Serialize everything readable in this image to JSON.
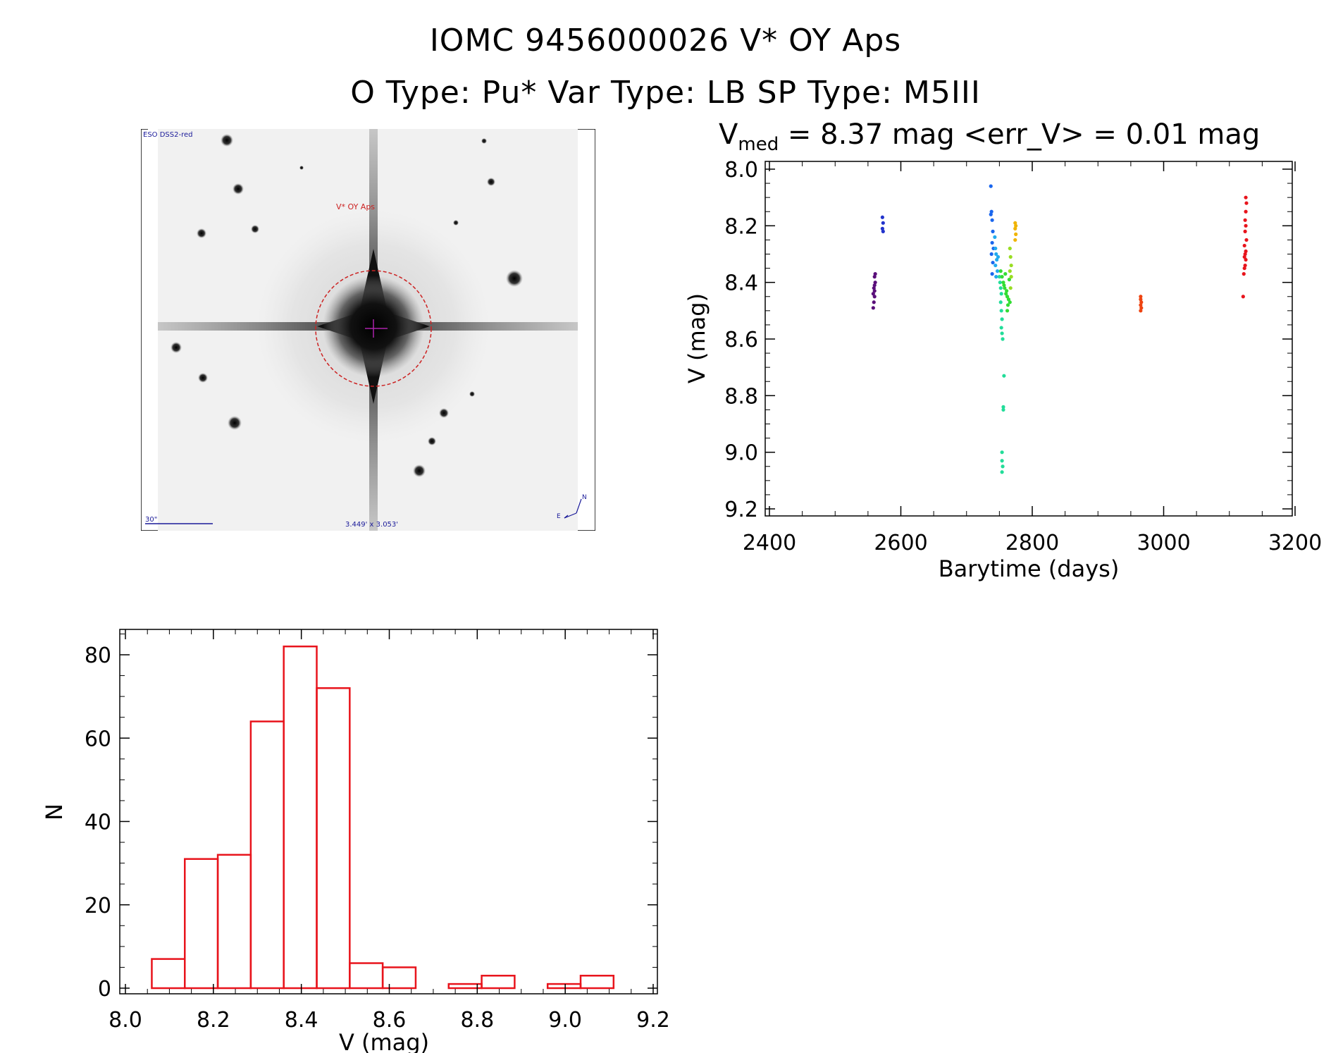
{
  "header": {
    "title_line1": "IOMC 9456000026    V* OY Aps",
    "title_line2": "O Type: Pu*  Var Type: LB  SP Type: M5III"
  },
  "sky_image": {
    "survey_label": "ESO DSS2-red",
    "target_label": "V* OY Aps",
    "scale_label": "30\"",
    "fov_label": "3.449' x 3.053'",
    "east_label": "E",
    "north_label": "N"
  },
  "colors": {
    "hist_bar": "#e8141c",
    "axis": "#000000",
    "circle": "#cc2222",
    "overlay_text": "#1a1a99"
  },
  "chart_data": [
    {
      "type": "scatter",
      "title": "V_med = 8.37 mag <err_V> = 0.01 mag",
      "title_parts": {
        "prefix": "V",
        "sub": "med",
        "rest": " = 8.37 mag <err_V> = 0.01 mag"
      },
      "xlabel": "Barytime (days)",
      "ylabel": "V (mag)",
      "xlim": [
        2400,
        3200
      ],
      "ylim": [
        8.0,
        9.2
      ],
      "y_inverted": true,
      "xticks": [
        2400,
        2600,
        2800,
        3000,
        3200
      ],
      "xtick_labels": [
        "2400",
        "2600",
        "2800",
        "3000",
        "3200"
      ],
      "yticks": [
        8.0,
        8.2,
        8.4,
        8.6,
        8.8,
        9.0,
        9.2
      ],
      "ytick_labels": [
        "8.0",
        "8.2",
        "8.4",
        "8.6",
        "8.8",
        "9.0",
        "9.2"
      ],
      "series": [
        {
          "color": "#5a0f7a",
          "points": [
            [
              2560,
              8.38
            ],
            [
              2561,
              8.4
            ],
            [
              2559,
              8.42
            ],
            [
              2560,
              8.43
            ],
            [
              2558,
              8.44
            ],
            [
              2560,
              8.45
            ],
            [
              2559,
              8.47
            ],
            [
              2558,
              8.49
            ],
            [
              2561,
              8.37
            ],
            [
              2560,
              8.41
            ]
          ]
        },
        {
          "color": "#2233cc",
          "points": [
            [
              2572,
              8.17
            ],
            [
              2573,
              8.19
            ],
            [
              2572,
              8.21
            ],
            [
              2573,
              8.22
            ]
          ]
        },
        {
          "color": "#1a66ee",
          "points": [
            [
              2737,
              8.06
            ],
            [
              2738,
              8.15
            ],
            [
              2737,
              8.16
            ],
            [
              2739,
              8.18
            ],
            [
              2740,
              8.22
            ],
            [
              2739,
              8.26
            ],
            [
              2741,
              8.28
            ],
            [
              2738,
              8.3
            ],
            [
              2740,
              8.33
            ],
            [
              2739,
              8.37
            ]
          ]
        },
        {
          "color": "#22aaee",
          "points": [
            [
              2743,
              8.24
            ],
            [
              2744,
              8.28
            ],
            [
              2745,
              8.3
            ],
            [
              2746,
              8.32
            ],
            [
              2744,
              8.34
            ],
            [
              2747,
              8.36
            ],
            [
              2745,
              8.38
            ],
            [
              2748,
              8.31
            ]
          ]
        },
        {
          "color": "#22dd99",
          "points": [
            [
              2750,
              8.38
            ],
            [
              2751,
              8.4
            ],
            [
              2752,
              8.42
            ],
            [
              2753,
              8.44
            ],
            [
              2752,
              8.47
            ],
            [
              2753,
              8.5
            ],
            [
              2754,
              8.53
            ],
            [
              2753,
              8.56
            ],
            [
              2754,
              8.58
            ],
            [
              2755,
              8.6
            ],
            [
              2757,
              8.73
            ],
            [
              2756,
              8.84
            ],
            [
              2756,
              8.85
            ],
            [
              2754,
              9.0
            ],
            [
              2754,
              9.03
            ],
            [
              2755,
              9.05
            ],
            [
              2754,
              9.07
            ]
          ]
        },
        {
          "color": "#33dd33",
          "points": [
            [
              2752,
              8.36
            ],
            [
              2754,
              8.38
            ],
            [
              2756,
              8.4
            ],
            [
              2758,
              8.42
            ],
            [
              2760,
              8.44
            ],
            [
              2762,
              8.45
            ],
            [
              2764,
              8.46
            ],
            [
              2766,
              8.47
            ],
            [
              2759,
              8.37
            ],
            [
              2761,
              8.43
            ],
            [
              2763,
              8.48
            ],
            [
              2757,
              8.41
            ],
            [
              2765,
              8.39
            ],
            [
              2762,
              8.5
            ]
          ]
        },
        {
          "color": "#99dd22",
          "points": [
            [
              2766,
              8.28
            ],
            [
              2767,
              8.31
            ],
            [
              2768,
              8.34
            ],
            [
              2766,
              8.36
            ],
            [
              2768,
              8.38
            ],
            [
              2767,
              8.42
            ]
          ]
        },
        {
          "color": "#f0b400",
          "points": [
            [
              2774,
              8.19
            ],
            [
              2774,
              8.21
            ],
            [
              2775,
              8.23
            ],
            [
              2774,
              8.25
            ],
            [
              2775,
              8.2
            ]
          ]
        },
        {
          "color": "#ee4411",
          "points": [
            [
              2965,
              8.45
            ],
            [
              2965,
              8.46
            ],
            [
              2966,
              8.47
            ],
            [
              2965,
              8.48
            ],
            [
              2966,
              8.49
            ],
            [
              2965,
              8.5
            ]
          ]
        },
        {
          "color": "#e8141c",
          "points": [
            [
              3125,
              8.1
            ],
            [
              3126,
              8.12
            ],
            [
              3125,
              8.15
            ],
            [
              3124,
              8.18
            ],
            [
              3125,
              8.2
            ],
            [
              3124,
              8.22
            ],
            [
              3126,
              8.25
            ],
            [
              3123,
              8.27
            ],
            [
              3125,
              8.29
            ],
            [
              3124,
              8.3
            ],
            [
              3123,
              8.31
            ],
            [
              3125,
              8.32
            ],
            [
              3124,
              8.34
            ],
            [
              3123,
              8.35
            ],
            [
              3122,
              8.37
            ],
            [
              3121,
              8.45
            ]
          ]
        }
      ]
    },
    {
      "type": "bar",
      "title": "",
      "xlabel": "V (mag)",
      "ylabel": "N",
      "xlim": [
        8.0,
        9.2
      ],
      "ylim": [
        0,
        86
      ],
      "xticks": [
        8.0,
        8.2,
        8.4,
        8.6,
        8.8,
        9.0,
        9.2
      ],
      "xtick_labels": [
        "8.0",
        "8.2",
        "8.4",
        "8.6",
        "8.8",
        "9.0",
        "9.2"
      ],
      "yticks": [
        0,
        20,
        40,
        60,
        80
      ],
      "ytick_labels": [
        "0",
        "20",
        "40",
        "60",
        "80"
      ],
      "bin_edges": [
        8.06,
        8.135,
        8.21,
        8.285,
        8.36,
        8.435,
        8.51,
        8.585,
        8.66,
        8.735,
        8.81,
        8.885,
        8.96,
        9.035,
        9.11
      ],
      "counts": [
        7,
        31,
        32,
        64,
        82,
        72,
        6,
        5,
        0,
        1,
        3,
        0,
        1,
        3
      ]
    }
  ]
}
